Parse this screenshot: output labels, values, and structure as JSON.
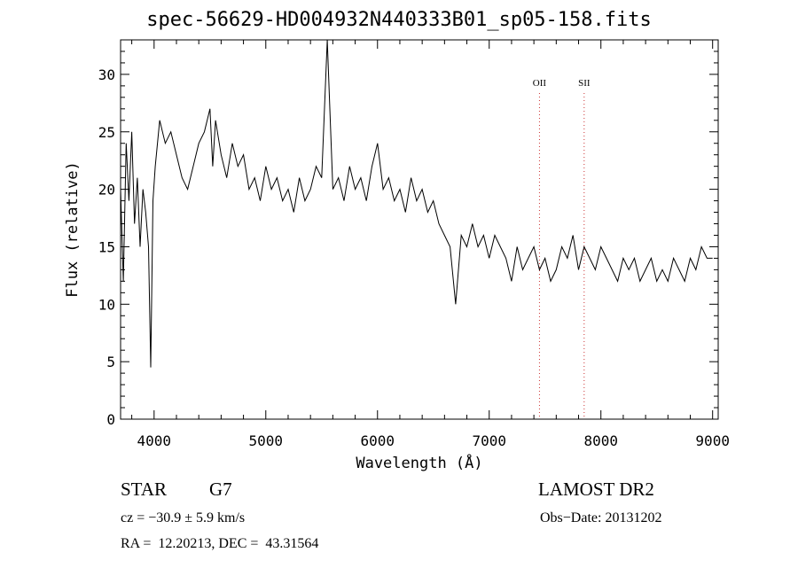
{
  "chart_data": {
    "type": "line",
    "title": "spec-56629-HD004932N440333B01_sp05-158.fits",
    "xlabel": "Wavelength (Å)",
    "ylabel": "Flux (relative)",
    "xlim": [
      3700,
      9050
    ],
    "ylim": [
      0,
      33
    ],
    "x_ticks": [
      4000,
      5000,
      6000,
      7000,
      8000,
      9000
    ],
    "y_ticks": [
      0,
      5,
      10,
      15,
      20,
      25,
      30
    ],
    "grid": false,
    "series": [
      {
        "x": [
          3700,
          3725,
          3750,
          3775,
          3800,
          3825,
          3850,
          3875,
          3900,
          3925,
          3950,
          3970,
          3990,
          4010,
          4050,
          4100,
          4150,
          4200,
          4250,
          4300,
          4350,
          4400,
          4450,
          4500,
          4525,
          4550,
          4600,
          4650,
          4700,
          4750,
          4800,
          4850,
          4900,
          4950,
          5000,
          5050,
          5100,
          5150,
          5200,
          5250,
          5300,
          5350,
          5400,
          5450,
          5500,
          5550,
          5600,
          5650,
          5700,
          5750,
          5800,
          5850,
          5900,
          5950,
          6000,
          6050,
          6100,
          6150,
          6200,
          6250,
          6300,
          6350,
          6400,
          6450,
          6500,
          6550,
          6600,
          6650,
          6700,
          6750,
          6800,
          6850,
          6900,
          6950,
          7000,
          7050,
          7100,
          7150,
          7200,
          7250,
          7300,
          7350,
          7400,
          7450,
          7500,
          7550,
          7600,
          7650,
          7700,
          7750,
          7800,
          7850,
          7900,
          7950,
          8000,
          8050,
          8100,
          8150,
          8200,
          8250,
          8300,
          8350,
          8400,
          8450,
          8500,
          8550,
          8600,
          8650,
          8700,
          8750,
          8800,
          8850,
          8900,
          8950,
          9000
        ],
        "y": [
          20,
          12,
          24,
          19,
          25,
          17,
          21,
          15,
          20,
          18,
          15,
          4.5,
          19,
          22,
          26,
          24,
          25,
          23,
          21,
          20,
          22,
          24,
          25,
          27,
          22,
          26,
          23,
          21,
          24,
          22,
          23,
          20,
          21,
          19,
          22,
          20,
          21,
          19,
          20,
          18,
          21,
          19,
          20,
          22,
          21,
          33,
          20,
          21,
          19,
          22,
          20,
          21,
          19,
          22,
          24,
          20,
          21,
          19,
          20,
          18,
          21,
          19,
          20,
          18,
          19,
          17,
          16,
          15,
          10,
          16,
          15,
          17,
          15,
          16,
          14,
          16,
          15,
          14,
          12,
          15,
          13,
          14,
          15,
          13,
          14,
          12,
          13,
          15,
          14,
          16,
          13,
          15,
          14,
          13,
          15,
          14,
          13,
          12,
          14,
          13,
          14,
          12,
          13,
          14,
          12,
          13,
          12,
          14,
          13,
          12,
          14,
          13,
          15,
          14,
          14
        ]
      }
    ],
    "annotations": [
      {
        "label": "OII",
        "x": 7450
      },
      {
        "label": "SII",
        "x": 7850
      }
    ]
  },
  "info": {
    "object_type": "STAR",
    "subclass": "G7",
    "survey": "LAMOST DR2",
    "redshift": "cz = −30.9 ± 5.9 km/s",
    "obs_date": "Obs−Date: 20131202",
    "coords": "RA =  12.20213, DEC =  43.31564"
  }
}
